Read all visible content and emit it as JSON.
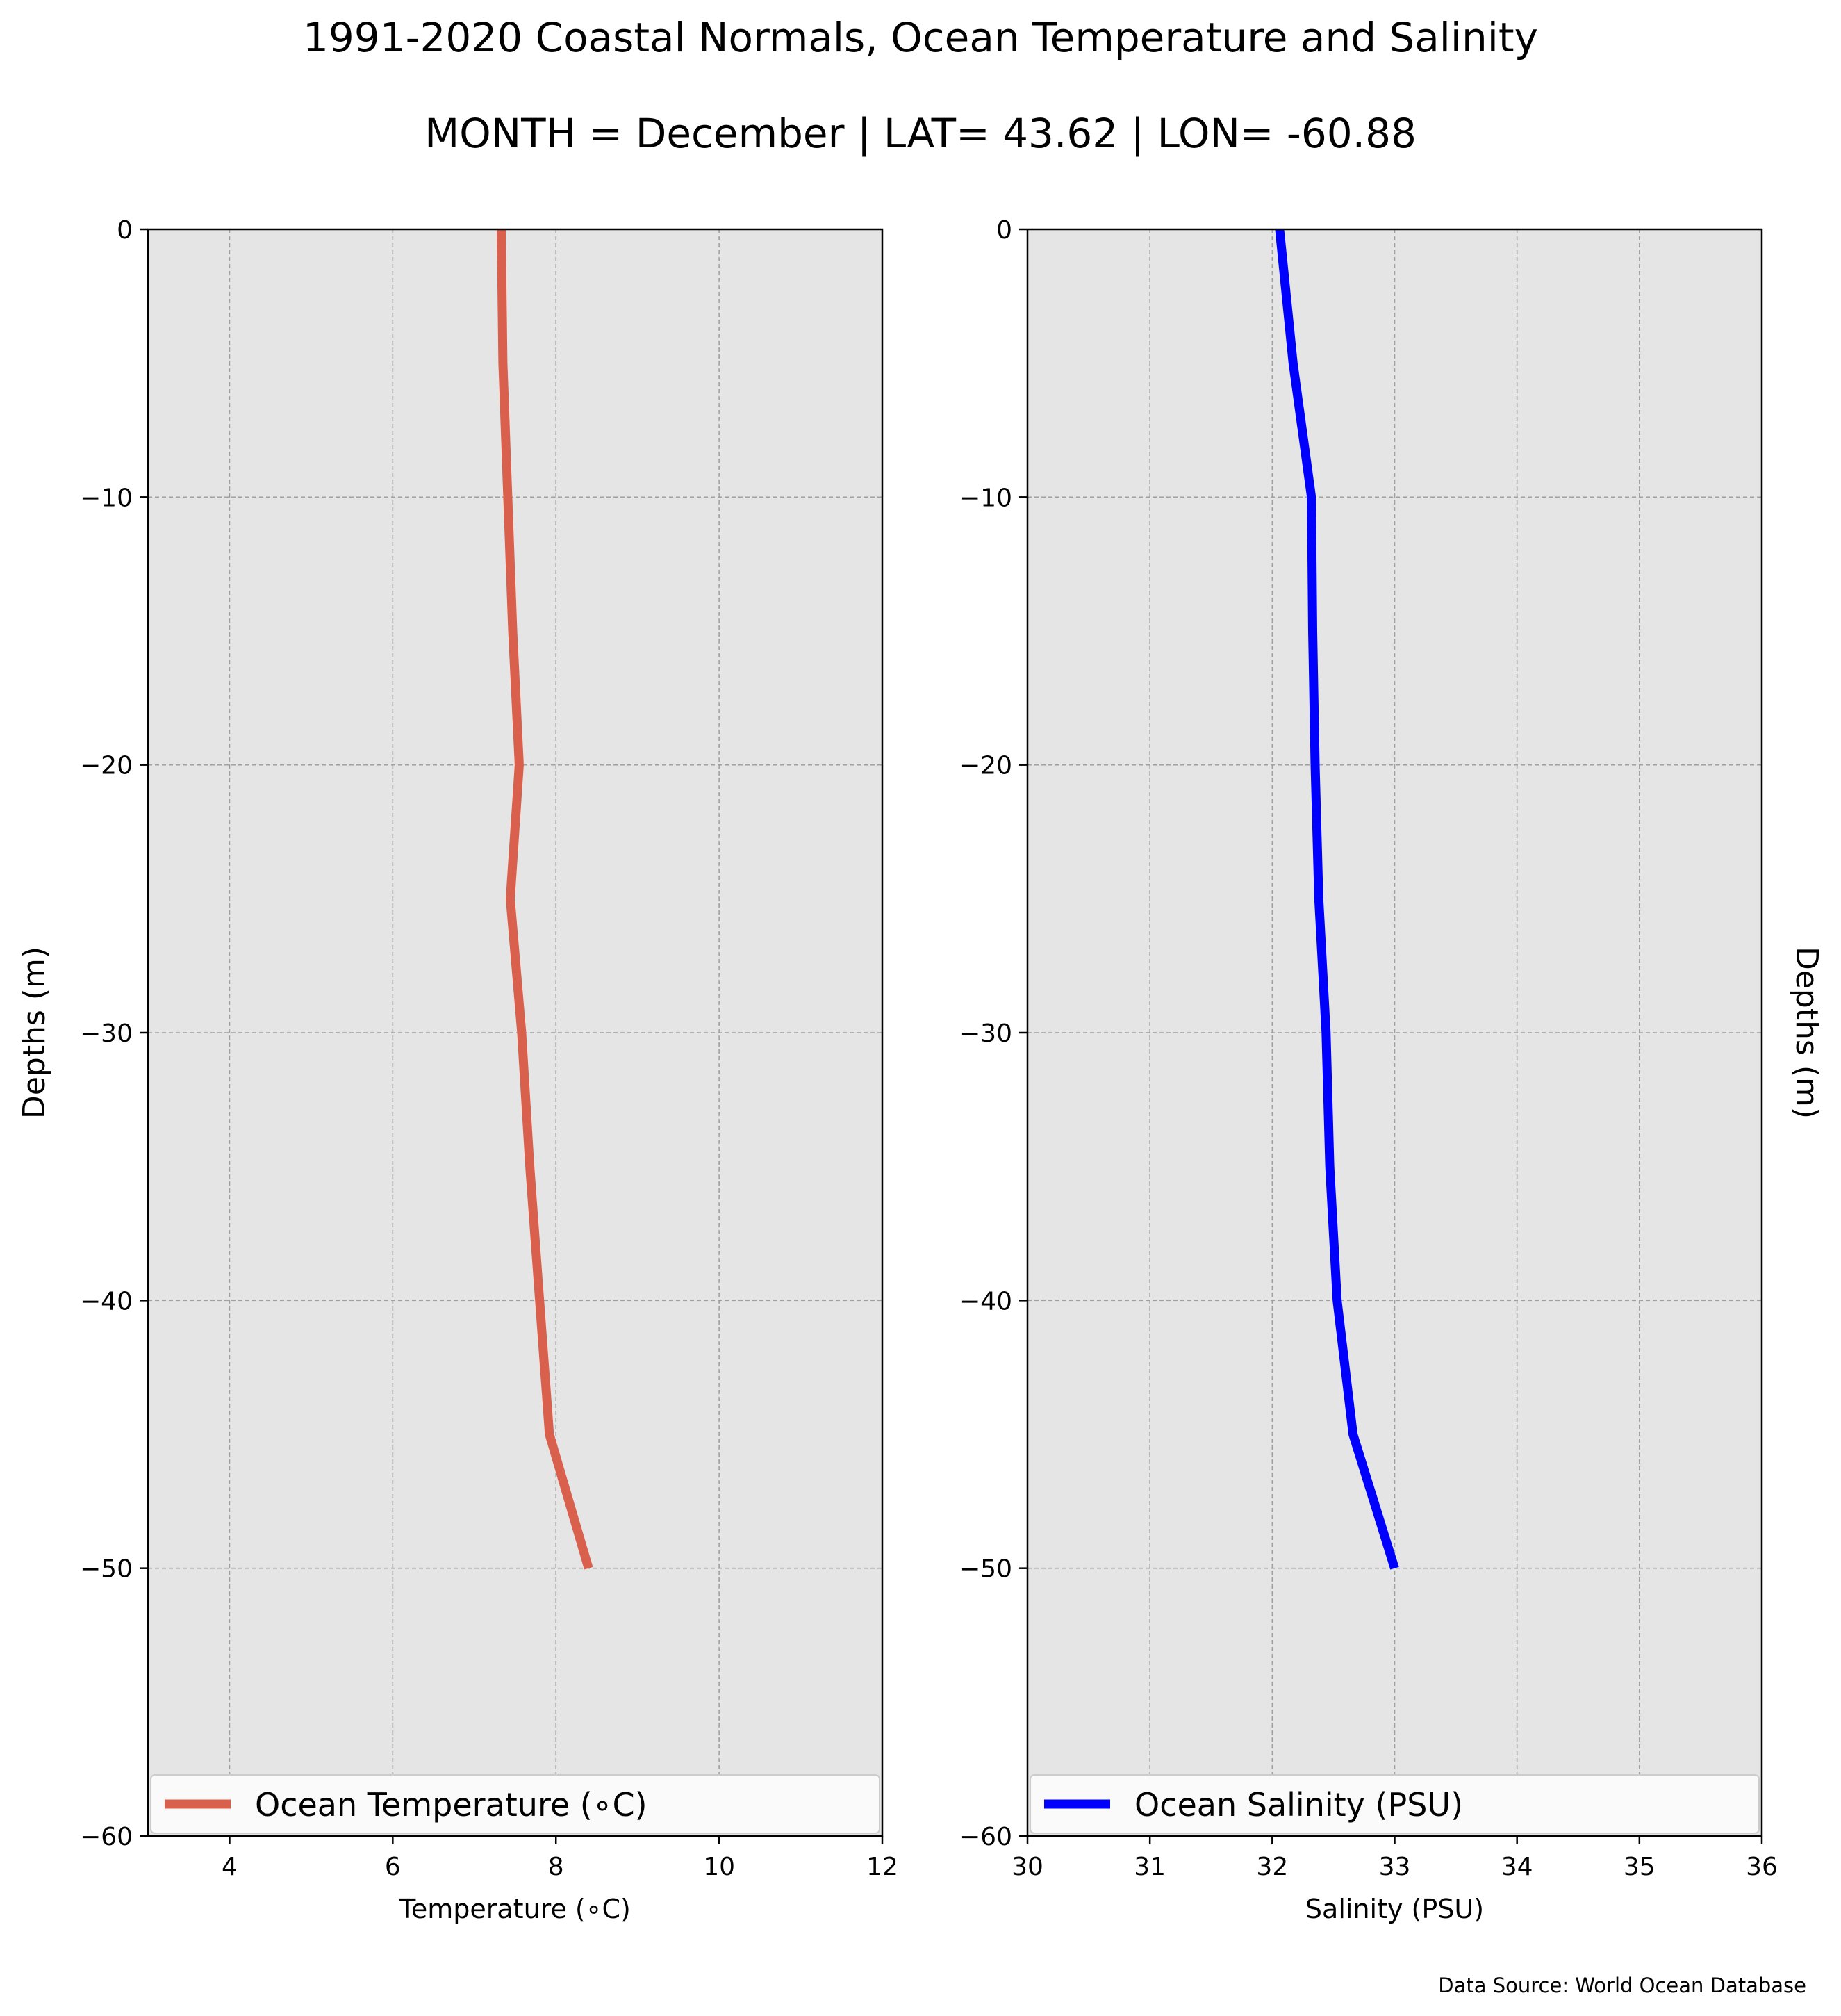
{
  "figure": {
    "title": "1991-2020 Coastal Normals, Ocean Temperature and Salinity",
    "subtitle": "MONTH = December | LAT= 43.62 | LON= -60.88",
    "source": "Data Source: World Ocean Database"
  },
  "colors": {
    "panel_bg": "#e5e5e5",
    "grid": "#a0a0a0",
    "temperature": "#d9604c",
    "salinity": "#0000ff"
  },
  "chart_data": [
    {
      "type": "line",
      "panel": "left",
      "xlabel": "Temperature (∘C)",
      "ylabel": "Depths (m)",
      "xlim": [
        3,
        12
      ],
      "ylim": [
        -60,
        0
      ],
      "xticks": [
        4,
        6,
        8,
        10,
        12
      ],
      "xtick_labels": [
        "4",
        "6",
        "8",
        "10",
        "12"
      ],
      "yticks": [
        0,
        -10,
        -20,
        -30,
        -40,
        -50,
        -60
      ],
      "ytick_labels": [
        "0",
        "−10",
        "−20",
        "−30",
        "−40",
        "−50",
        "−60"
      ],
      "grid": true,
      "legend_position": "bottom",
      "series": [
        {
          "name": "Ocean Temperature (∘C)",
          "color": "#d9604c",
          "x": [
            7.33,
            7.35,
            7.41,
            7.47,
            7.55,
            7.44,
            7.58,
            7.68,
            7.8,
            7.92,
            8.4
          ],
          "y": [
            0,
            -5,
            -10,
            -15,
            -20,
            -25,
            -30,
            -35,
            -40,
            -45,
            -50
          ]
        }
      ]
    },
    {
      "type": "line",
      "panel": "right",
      "xlabel": "Salinity (PSU)",
      "ylabel": "Depths (m)",
      "xlim": [
        30,
        36
      ],
      "ylim": [
        -60,
        0
      ],
      "xticks": [
        30,
        31,
        32,
        33,
        34,
        35,
        36
      ],
      "xtick_labels": [
        "30",
        "31",
        "32",
        "33",
        "34",
        "35",
        "36"
      ],
      "yticks": [
        0,
        -10,
        -20,
        -30,
        -40,
        -50,
        -60
      ],
      "ytick_labels": [
        "0",
        "−10",
        "−20",
        "−30",
        "−40",
        "−50",
        "−60"
      ],
      "grid": true,
      "legend_position": "bottom",
      "series": [
        {
          "name": "Ocean Salinity (PSU)",
          "color": "#0000ff",
          "x": [
            32.06,
            32.17,
            32.32,
            32.33,
            32.35,
            32.38,
            32.44,
            32.47,
            32.53,
            32.66,
            33.0
          ],
          "y": [
            0,
            -5,
            -10,
            -15,
            -20,
            -25,
            -30,
            -35,
            -40,
            -45,
            -50
          ]
        }
      ]
    }
  ]
}
